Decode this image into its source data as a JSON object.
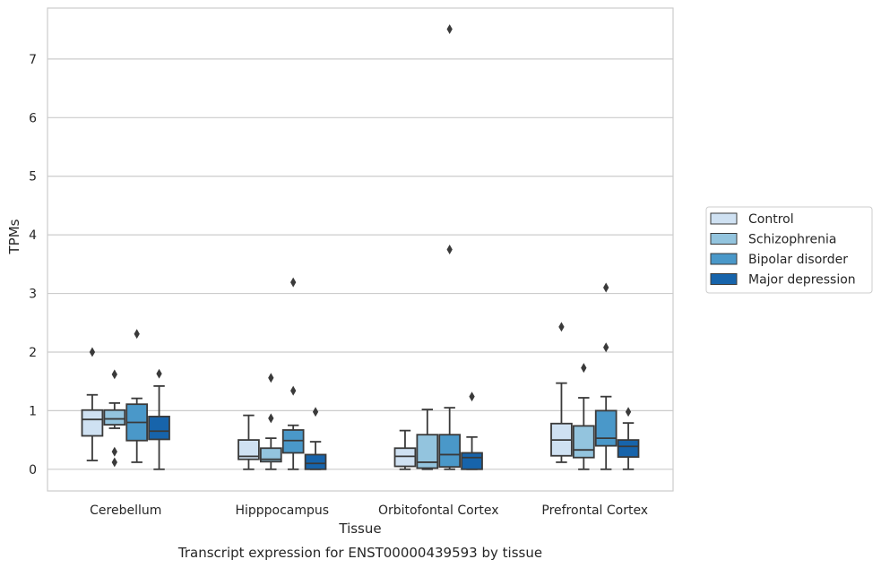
{
  "chart_data": {
    "type": "boxplot",
    "xlabel": "Tissue",
    "ylabel": "TPMs",
    "caption": "Transcript expression for ENST00000439593 by tissue",
    "ylim": [
      -0.37,
      7.87
    ],
    "yticks": [
      0,
      1,
      2,
      3,
      4,
      5,
      6,
      7
    ],
    "grid": "horizontal",
    "legend_position": "right",
    "categories": [
      "Cerebellum",
      "Hipppocampus",
      "Orbitofontal Cortex",
      "Prefrontal Cortex"
    ],
    "series": [
      {
        "name": "Control",
        "color": "#cfe1f2",
        "boxes": [
          {
            "whislo": 0.15,
            "q1": 0.57,
            "med": 0.85,
            "q3": 1.01,
            "whishi": 1.27,
            "fliers": [
              2.0
            ]
          },
          {
            "whislo": 0.0,
            "q1": 0.17,
            "med": 0.22,
            "q3": 0.5,
            "whishi": 0.92,
            "fliers": []
          },
          {
            "whislo": 0.0,
            "q1": 0.05,
            "med": 0.22,
            "q3": 0.36,
            "whishi": 0.66,
            "fliers": []
          },
          {
            "whislo": 0.12,
            "q1": 0.23,
            "med": 0.5,
            "q3": 0.78,
            "whishi": 1.47,
            "fliers": [
              2.43
            ]
          }
        ]
      },
      {
        "name": "Schizophrenia",
        "color": "#93c4de",
        "boxes": [
          {
            "whislo": 0.7,
            "q1": 0.76,
            "med": 0.86,
            "q3": 1.01,
            "whishi": 1.13,
            "fliers": [
              1.62,
              0.3,
              0.12
            ]
          },
          {
            "whislo": 0.0,
            "q1": 0.13,
            "med": 0.17,
            "q3": 0.36,
            "whishi": 0.53,
            "fliers": [
              1.56,
              0.87
            ]
          },
          {
            "whislo": 0.0,
            "q1": 0.02,
            "med": 0.12,
            "q3": 0.59,
            "whishi": 1.02,
            "fliers": []
          },
          {
            "whislo": 0.0,
            "q1": 0.2,
            "med": 0.33,
            "q3": 0.74,
            "whishi": 1.22,
            "fliers": [
              1.73
            ]
          }
        ]
      },
      {
        "name": "Bipolar disorder",
        "color": "#4a98c9",
        "boxes": [
          {
            "whislo": 0.12,
            "q1": 0.49,
            "med": 0.8,
            "q3": 1.11,
            "whishi": 1.21,
            "fliers": [
              2.31
            ]
          },
          {
            "whislo": 0.0,
            "q1": 0.28,
            "med": 0.49,
            "q3": 0.67,
            "whishi": 0.75,
            "fliers": [
              3.19,
              1.34
            ]
          },
          {
            "whislo": 0.0,
            "q1": 0.04,
            "med": 0.25,
            "q3": 0.59,
            "whishi": 1.05,
            "fliers": [
              7.51,
              3.75
            ]
          },
          {
            "whislo": 0.0,
            "q1": 0.4,
            "med": 0.53,
            "q3": 1.0,
            "whishi": 1.24,
            "fliers": [
              3.1,
              2.08
            ]
          }
        ]
      },
      {
        "name": "Major depression",
        "color": "#1764ab",
        "boxes": [
          {
            "whislo": 0.0,
            "q1": 0.51,
            "med": 0.65,
            "q3": 0.9,
            "whishi": 1.42,
            "fliers": [
              1.63
            ]
          },
          {
            "whislo": 0.0,
            "q1": 0.0,
            "med": 0.1,
            "q3": 0.25,
            "whishi": 0.47,
            "fliers": [
              0.98
            ]
          },
          {
            "whislo": 0.0,
            "q1": 0.0,
            "med": 0.2,
            "q3": 0.28,
            "whishi": 0.55,
            "fliers": [
              1.24
            ]
          },
          {
            "whislo": 0.0,
            "q1": 0.21,
            "med": 0.39,
            "q3": 0.5,
            "whishi": 0.79,
            "fliers": [
              0.98
            ]
          }
        ]
      }
    ]
  }
}
